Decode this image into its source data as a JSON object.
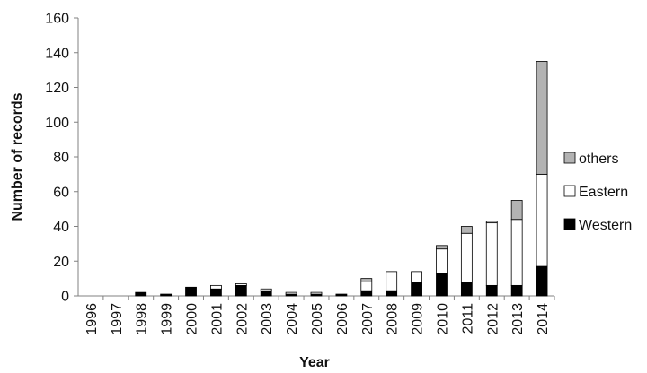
{
  "chart_data": {
    "type": "bar",
    "stacked": true,
    "title": "",
    "xlabel": "Year",
    "ylabel": "Number of records",
    "ylim": [
      0,
      160
    ],
    "yticks": [
      "0",
      "20",
      "40",
      "60",
      "80",
      "100",
      "120",
      "140",
      "160"
    ],
    "categories": [
      "1996",
      "1997",
      "1998",
      "1999",
      "2000",
      "2001",
      "2002",
      "2003",
      "2004",
      "2005",
      "2006",
      "2007",
      "2008",
      "2009",
      "2010",
      "2011",
      "2012",
      "2013",
      "2014"
    ],
    "series": [
      {
        "name": "Western",
        "color": "#000000",
        "values": [
          0,
          0,
          2,
          1,
          5,
          4,
          6,
          3,
          1,
          1,
          1,
          3,
          3,
          8,
          13,
          8,
          6,
          6,
          17
        ]
      },
      {
        "name": "Eastern",
        "color": "#ffffff",
        "values": [
          0,
          0,
          0,
          0,
          0,
          2,
          1,
          1,
          1,
          1,
          0,
          5,
          11,
          6,
          14,
          28,
          36,
          38,
          53
        ]
      },
      {
        "name": "others",
        "color": "#b3b3b3",
        "values": [
          0,
          0,
          0,
          0,
          0,
          0,
          0,
          0,
          0,
          0,
          0,
          2,
          0,
          0,
          2,
          4,
          1,
          11,
          65
        ]
      }
    ],
    "legend_position": "right",
    "legend_order": [
      "others",
      "Eastern",
      "Western"
    ],
    "grid": false
  }
}
